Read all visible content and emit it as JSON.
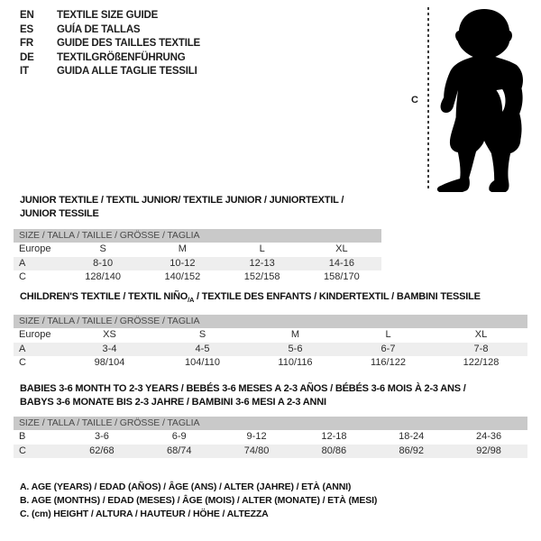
{
  "colors": {
    "header_bar": "#c9c9c9",
    "shaded_row": "#eeeeee",
    "text": "#1d1d1d"
  },
  "languages": [
    {
      "code": "EN",
      "label": "TEXTILE SIZE GUIDE"
    },
    {
      "code": "ES",
      "label": "GUÍA DE TALLAS"
    },
    {
      "code": "FR",
      "label": "GUIDE DES TAILLES TEXTILE"
    },
    {
      "code": "DE",
      "label": "TEXTILGRÖßENFÜHRUNG"
    },
    {
      "code": "IT",
      "label": "GUIDA ALLE TAGLIE TESSILI"
    }
  ],
  "figure": {
    "label": "C",
    "depicts": "toddler-silhouette with height measurement dotted line"
  },
  "sections": [
    {
      "title": [
        {
          "t": "JUNIOR TEXTILE / TEXTIL JUNIOR/ TEXTILE JUNIOR / JUNIORTEXTIL / JUNIOR TESSILE"
        }
      ],
      "size_header": "SIZE / TALLA / TAILLE / GRÖSSE / TAGLIA",
      "rows": [
        {
          "label": "Europe",
          "values": [
            "S",
            "M",
            "L",
            "XL"
          ],
          "shaded": false
        },
        {
          "label": "A",
          "values": [
            "8-10",
            "10-12",
            "12-13",
            "14-16"
          ],
          "shaded": true
        },
        {
          "label": "C",
          "values": [
            "128/140",
            "140/152",
            "152/158",
            "158/170"
          ],
          "shaded": false
        }
      ]
    },
    {
      "title": [
        {
          "t": "CHILDREN'S TEXTILE / TEXTIL NIÑO"
        },
        {
          "t": "/A",
          "sub": true
        },
        {
          "t": " / TEXTILE DES ENFANTS / KINDERTEXTIL / BAMBINI TESSILE"
        }
      ],
      "size_header": "SIZE / TALLA / TAILLE / GRÖSSE / TAGLIA",
      "rows": [
        {
          "label": "Europe",
          "values": [
            "XS",
            "S",
            "M",
            "L",
            "XL"
          ],
          "shaded": false
        },
        {
          "label": "A",
          "values": [
            "3-4",
            "4-5",
            "5-6",
            "6-7",
            "7-8"
          ],
          "shaded": true
        },
        {
          "label": "C",
          "values": [
            "98/104",
            "104/110",
            "110/116",
            "116/122",
            "122/128"
          ],
          "shaded": false
        }
      ]
    },
    {
      "title": [
        {
          "t": "BABIES 3-6 MONTH TO 2-3 YEARS / BEBÉS 3-6 MESES A 2-3 AÑOS / BÉBÉS 3-6 MOIS À 2-3 ANS /"
        },
        {
          "t": "BABYS 3-6 MONATE BIS 2-3 JAHRE / BAMBINI 3-6 MESI A 2-3 ANNI",
          "br": true
        }
      ],
      "size_header": "SIZE / TALLA / TAILLE / GRÖSSE / TAGLIA",
      "rows": [
        {
          "label": "B",
          "values": [
            "3-6",
            "6-9",
            "9-12",
            "12-18",
            "18-24",
            "24-36"
          ],
          "shaded": false
        },
        {
          "label": "C",
          "values": [
            "62/68",
            "68/74",
            "74/80",
            "80/86",
            "86/92",
            "92/98"
          ],
          "shaded": true
        }
      ]
    }
  ],
  "footnotes": [
    "A. AGE (YEARS) / EDAD (AÑOS) / ÂGE (ANS) / ALTER (JAHRE) / ETÀ (ANNI)",
    "B. AGE (MONTHS) / EDAD (MESES) / ÂGE (MOIS) / ALTER (MONATE) / ETÀ (MESI)",
    "C. (cm) HEIGHT / ALTURA / HAUTEUR / HÖHE / ALTEZZA"
  ]
}
